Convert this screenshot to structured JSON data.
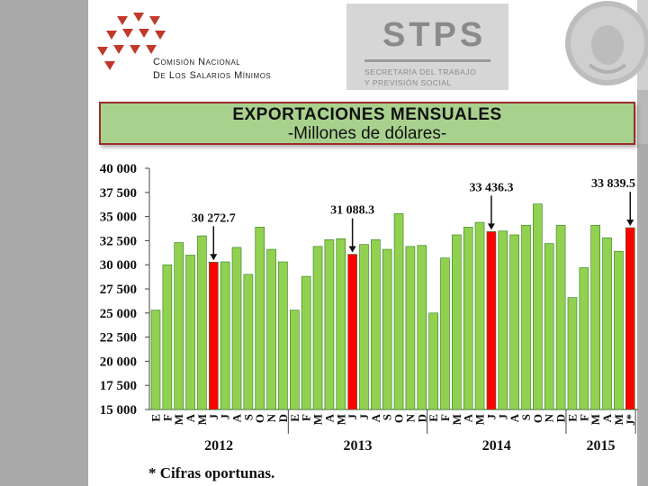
{
  "header": {
    "org_name_line1": "Comisión Nacional",
    "org_name_line2": "De Los Salarios Mínimos",
    "agency_acronym": "STPS",
    "agency_name_line1": "SECRETARÍA DEL TRABAJO",
    "agency_name_line2": "Y PREVISIÓN SOCIAL"
  },
  "footnote": "* Cifras oportunas.",
  "colors": {
    "bar": "#92d050",
    "highlight": "#ff0000",
    "title_bg": "#a9d18e",
    "title_border": "#9b2d2d"
  },
  "chart_data": {
    "type": "bar",
    "title": "EXPORTACIONES MENSUALES",
    "subtitle": "-Millones de dólares-",
    "xlabel": "",
    "ylabel": "",
    "ylim": [
      15000,
      40000
    ],
    "yticks": [
      15000,
      17500,
      20000,
      22500,
      25000,
      27500,
      30000,
      32500,
      35000,
      37500,
      40000
    ],
    "ytick_labels": [
      "15 000",
      "17 500",
      "20 000",
      "22 500",
      "25 000",
      "27 500",
      "30 000",
      "32 500",
      "35 000",
      "37 500",
      "40 000"
    ],
    "grid": false,
    "legend": "none",
    "categories": [
      "E",
      "F",
      "M",
      "A",
      "M",
      "J",
      "J",
      "A",
      "S",
      "O",
      "N",
      "D",
      "E",
      "F",
      "M",
      "A",
      "M",
      "J",
      "J",
      "A",
      "S",
      "O",
      "N",
      "D",
      "E",
      "F",
      "M",
      "A",
      "M",
      "J",
      "J",
      "A",
      "S",
      "O",
      "N",
      "D",
      "E",
      "F",
      "M",
      "A",
      "M",
      "J*"
    ],
    "values": [
      25300,
      30000,
      32300,
      31000,
      33000,
      30272.7,
      30300,
      31800,
      29000,
      33900,
      31600,
      30300,
      25300,
      28800,
      31900,
      32600,
      32700,
      31088.3,
      32100,
      32600,
      31600,
      35300,
      31900,
      32000,
      25000,
      30700,
      33100,
      33900,
      34400,
      33436.3,
      33500,
      33100,
      34100,
      36300,
      32200,
      34100,
      26600,
      29700,
      34100,
      32800,
      31400,
      33839.5
    ],
    "highlight_indices": [
      5,
      17,
      29,
      41
    ],
    "annotations": [
      {
        "index": 5,
        "label": "30 272.7"
      },
      {
        "index": 17,
        "label": "31 088.3"
      },
      {
        "index": 29,
        "label": "33 436.3"
      },
      {
        "index": 41,
        "label": "33 839.5"
      }
    ],
    "groups": [
      {
        "label": "2012",
        "start": 0,
        "end": 11
      },
      {
        "label": "2013",
        "start": 12,
        "end": 23
      },
      {
        "label": "2014",
        "start": 24,
        "end": 35
      },
      {
        "label": "2015",
        "start": 36,
        "end": 41
      }
    ]
  }
}
